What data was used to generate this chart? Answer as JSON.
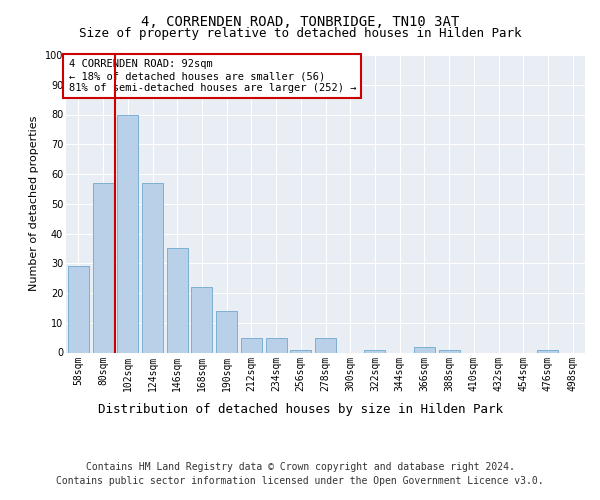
{
  "title": "4, CORRENDEN ROAD, TONBRIDGE, TN10 3AT",
  "subtitle": "Size of property relative to detached houses in Hilden Park",
  "xlabel": "Distribution of detached houses by size in Hilden Park",
  "ylabel": "Number of detached properties",
  "categories": [
    "58sqm",
    "80sqm",
    "102sqm",
    "124sqm",
    "146sqm",
    "168sqm",
    "190sqm",
    "212sqm",
    "234sqm",
    "256sqm",
    "278sqm",
    "300sqm",
    "322sqm",
    "344sqm",
    "366sqm",
    "388sqm",
    "410sqm",
    "432sqm",
    "454sqm",
    "476sqm",
    "498sqm"
  ],
  "values": [
    29,
    57,
    80,
    57,
    35,
    22,
    14,
    5,
    5,
    1,
    5,
    0,
    1,
    0,
    2,
    1,
    0,
    0,
    0,
    1,
    0
  ],
  "bar_color": "#b8d0e8",
  "bar_edge_color": "#6fa8d0",
  "vline_x": 1.5,
  "vline_color": "#cc0000",
  "annotation_text": "4 CORRENDEN ROAD: 92sqm\n← 18% of detached houses are smaller (56)\n81% of semi-detached houses are larger (252) →",
  "annotation_box_color": "#ffffff",
  "annotation_box_edge_color": "#cc0000",
  "ylim": [
    0,
    100
  ],
  "yticks": [
    0,
    10,
    20,
    30,
    40,
    50,
    60,
    70,
    80,
    90,
    100
  ],
  "background_color": "#e8eef4",
  "grid_color": "#ffffff",
  "footer_line1": "Contains HM Land Registry data © Crown copyright and database right 2024.",
  "footer_line2": "Contains public sector information licensed under the Open Government Licence v3.0.",
  "title_fontsize": 10,
  "subtitle_fontsize": 9,
  "xlabel_fontsize": 9,
  "ylabel_fontsize": 8,
  "tick_fontsize": 7,
  "annotation_fontsize": 7.5,
  "footer_fontsize": 7
}
